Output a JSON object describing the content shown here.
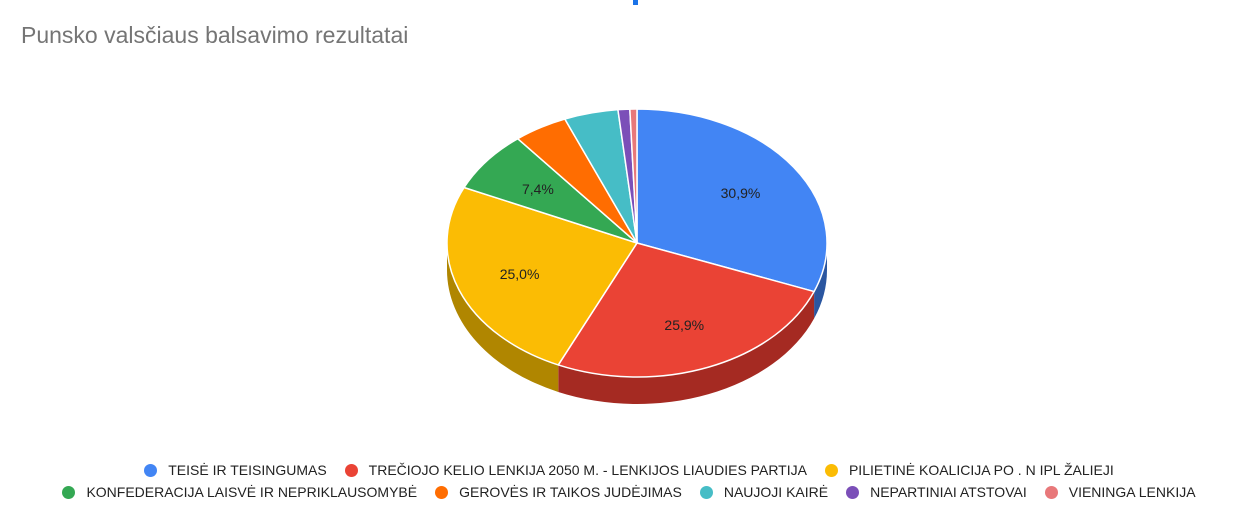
{
  "chart_data": {
    "type": "pie",
    "title": "Punsko valsčiaus balsavimo rezultatai",
    "three_d": true,
    "legend_position": "bottom",
    "slices": [
      {
        "name": "TEISĖ IR TEISINGUMAS",
        "value": 30.9,
        "label": "30,9%",
        "color": "#4285f4",
        "side_color": "#2a56a0"
      },
      {
        "name": "TREČIOJO KELIO LENKIJA 2050 M. - LENKIJOS LIAUDIES PARTIJA",
        "value": 25.9,
        "label": "25,9%",
        "color": "#ea4335",
        "side_color": "#a52a22"
      },
      {
        "name": "PILIETINĖ KOALICIJA PO . N IPL ŽALIEJI",
        "value": 25.0,
        "label": "25,0%",
        "color": "#fbbc04",
        "side_color": "#b08600"
      },
      {
        "name": "KONFEDERACIJA LAISVĖ IR NEPRIKLAUSOMYBĖ",
        "value": 7.4,
        "label": "7,4%",
        "color": "#34a853",
        "side_color": "#237538"
      },
      {
        "name": "GEROVĖS IR TAIKOS JUDĖJIMAS",
        "value": 4.6,
        "label": "",
        "color": "#ff6d01",
        "side_color": "#b24c00"
      },
      {
        "name": "NAUJOJI KAIRĖ",
        "value": 4.6,
        "label": "",
        "color": "#46bdc6",
        "side_color": "#2e858b"
      },
      {
        "name": "NEPARTINIAI ATSTOVAI",
        "value": 1.0,
        "label": "",
        "color": "#7b4fb8",
        "side_color": "#553580"
      },
      {
        "name": "VIENINGA LENKIJA",
        "value": 0.6,
        "label": "",
        "color": "#e8787a",
        "side_color": "#a35355"
      }
    ]
  }
}
